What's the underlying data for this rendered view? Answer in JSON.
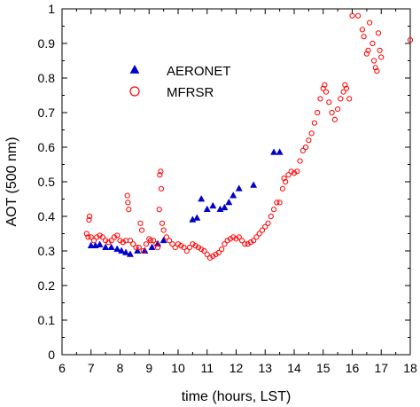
{
  "chart_data": {
    "type": "scatter",
    "title": "",
    "xlabel": "time (hours, LST)",
    "ylabel": "AOT (500 nm)",
    "xlim": [
      6,
      18
    ],
    "ylim": [
      0,
      1
    ],
    "xticks": [
      "6",
      "7",
      "8",
      "9",
      "10",
      "11",
      "12",
      "13",
      "14",
      "15",
      "16",
      "17",
      "18"
    ],
    "yticks": [
      "0",
      "0.1",
      "0.2",
      "0.3",
      "0.4",
      "0.5",
      "0.6",
      "0.7",
      "0.8",
      "0.9",
      "1"
    ],
    "grid": false,
    "legend": "upper-left",
    "series": [
      {
        "name": "AERONET",
        "marker": "filled-triangle",
        "color": "#0000cc",
        "points": [
          [
            7.0,
            0.315
          ],
          [
            7.15,
            0.315
          ],
          [
            7.3,
            0.318
          ],
          [
            7.5,
            0.31
          ],
          [
            7.7,
            0.31
          ],
          [
            7.9,
            0.305
          ],
          [
            8.05,
            0.3
          ],
          [
            8.2,
            0.295
          ],
          [
            8.35,
            0.29
          ],
          [
            8.6,
            0.3
          ],
          [
            8.85,
            0.3
          ],
          [
            9.1,
            0.31
          ],
          [
            9.3,
            0.32
          ],
          [
            9.5,
            0.33
          ],
          [
            10.5,
            0.39
          ],
          [
            10.65,
            0.395
          ],
          [
            10.8,
            0.45
          ],
          [
            11.0,
            0.42
          ],
          [
            11.2,
            0.43
          ],
          [
            11.45,
            0.42
          ],
          [
            11.6,
            0.425
          ],
          [
            11.75,
            0.44
          ],
          [
            11.9,
            0.46
          ],
          [
            12.1,
            0.48
          ],
          [
            12.6,
            0.49
          ],
          [
            13.3,
            0.585
          ],
          [
            13.5,
            0.585
          ]
        ]
      },
      {
        "name": "MFRSR",
        "marker": "open-circle",
        "color": "#ff0000",
        "points": [
          [
            6.85,
            0.35
          ],
          [
            6.9,
            0.34
          ],
          [
            6.93,
            0.39
          ],
          [
            6.95,
            0.4
          ],
          [
            7.0,
            0.34
          ],
          [
            7.1,
            0.33
          ],
          [
            7.2,
            0.34
          ],
          [
            7.3,
            0.345
          ],
          [
            7.4,
            0.34
          ],
          [
            7.5,
            0.33
          ],
          [
            7.6,
            0.325
          ],
          [
            7.7,
            0.33
          ],
          [
            7.8,
            0.34
          ],
          [
            7.9,
            0.345
          ],
          [
            8.0,
            0.33
          ],
          [
            8.1,
            0.325
          ],
          [
            8.2,
            0.33
          ],
          [
            8.25,
            0.46
          ],
          [
            8.27,
            0.44
          ],
          [
            8.3,
            0.42
          ],
          [
            8.35,
            0.33
          ],
          [
            8.45,
            0.32
          ],
          [
            8.55,
            0.31
          ],
          [
            8.65,
            0.31
          ],
          [
            8.7,
            0.38
          ],
          [
            8.75,
            0.36
          ],
          [
            8.8,
            0.3
          ],
          [
            8.9,
            0.32
          ],
          [
            9.0,
            0.335
          ],
          [
            9.05,
            0.33
          ],
          [
            9.15,
            0.33
          ],
          [
            9.25,
            0.32
          ],
          [
            9.3,
            0.31
          ],
          [
            9.35,
            0.42
          ],
          [
            9.37,
            0.52
          ],
          [
            9.4,
            0.53
          ],
          [
            9.42,
            0.48
          ],
          [
            9.45,
            0.38
          ],
          [
            9.5,
            0.36
          ],
          [
            9.6,
            0.34
          ],
          [
            9.7,
            0.33
          ],
          [
            9.8,
            0.32
          ],
          [
            9.9,
            0.31
          ],
          [
            10.0,
            0.32
          ],
          [
            10.1,
            0.315
          ],
          [
            10.2,
            0.31
          ],
          [
            10.3,
            0.3
          ],
          [
            10.4,
            0.31
          ],
          [
            10.5,
            0.32
          ],
          [
            10.6,
            0.315
          ],
          [
            10.7,
            0.31
          ],
          [
            10.8,
            0.305
          ],
          [
            10.9,
            0.3
          ],
          [
            11.0,
            0.29
          ],
          [
            11.1,
            0.28
          ],
          [
            11.2,
            0.285
          ],
          [
            11.3,
            0.29
          ],
          [
            11.4,
            0.295
          ],
          [
            11.5,
            0.305
          ],
          [
            11.6,
            0.32
          ],
          [
            11.7,
            0.33
          ],
          [
            11.8,
            0.335
          ],
          [
            11.9,
            0.34
          ],
          [
            12.0,
            0.335
          ],
          [
            12.1,
            0.34
          ],
          [
            12.2,
            0.33
          ],
          [
            12.3,
            0.32
          ],
          [
            12.4,
            0.32
          ],
          [
            12.5,
            0.325
          ],
          [
            12.6,
            0.33
          ],
          [
            12.7,
            0.34
          ],
          [
            12.8,
            0.35
          ],
          [
            12.9,
            0.36
          ],
          [
            13.0,
            0.37
          ],
          [
            13.1,
            0.38
          ],
          [
            13.2,
            0.4
          ],
          [
            13.3,
            0.42
          ],
          [
            13.4,
            0.44
          ],
          [
            13.5,
            0.44
          ],
          [
            13.6,
            0.48
          ],
          [
            13.65,
            0.51
          ],
          [
            13.7,
            0.5
          ],
          [
            13.8,
            0.52
          ],
          [
            13.9,
            0.53
          ],
          [
            14.0,
            0.525
          ],
          [
            14.1,
            0.53
          ],
          [
            14.2,
            0.56
          ],
          [
            14.3,
            0.59
          ],
          [
            14.4,
            0.6
          ],
          [
            14.5,
            0.62
          ],
          [
            14.6,
            0.64
          ],
          [
            14.7,
            0.67
          ],
          [
            14.8,
            0.7
          ],
          [
            14.9,
            0.74
          ],
          [
            15.0,
            0.77
          ],
          [
            15.05,
            0.78
          ],
          [
            15.1,
            0.76
          ],
          [
            15.2,
            0.73
          ],
          [
            15.3,
            0.7
          ],
          [
            15.4,
            0.68
          ],
          [
            15.5,
            0.71
          ],
          [
            15.6,
            0.74
          ],
          [
            15.7,
            0.76
          ],
          [
            15.75,
            0.78
          ],
          [
            15.8,
            0.77
          ],
          [
            15.9,
            0.74
          ],
          [
            16.0,
            0.98
          ],
          [
            16.2,
            0.98
          ],
          [
            16.35,
            0.94
          ],
          [
            16.4,
            0.92
          ],
          [
            16.5,
            0.87
          ],
          [
            16.55,
            0.88
          ],
          [
            16.6,
            0.96
          ],
          [
            16.7,
            0.9
          ],
          [
            16.75,
            0.85
          ],
          [
            16.8,
            0.83
          ],
          [
            16.85,
            0.82
          ],
          [
            16.9,
            0.93
          ],
          [
            16.95,
            0.88
          ],
          [
            17.0,
            0.86
          ],
          [
            18.0,
            0.91
          ]
        ]
      }
    ]
  }
}
